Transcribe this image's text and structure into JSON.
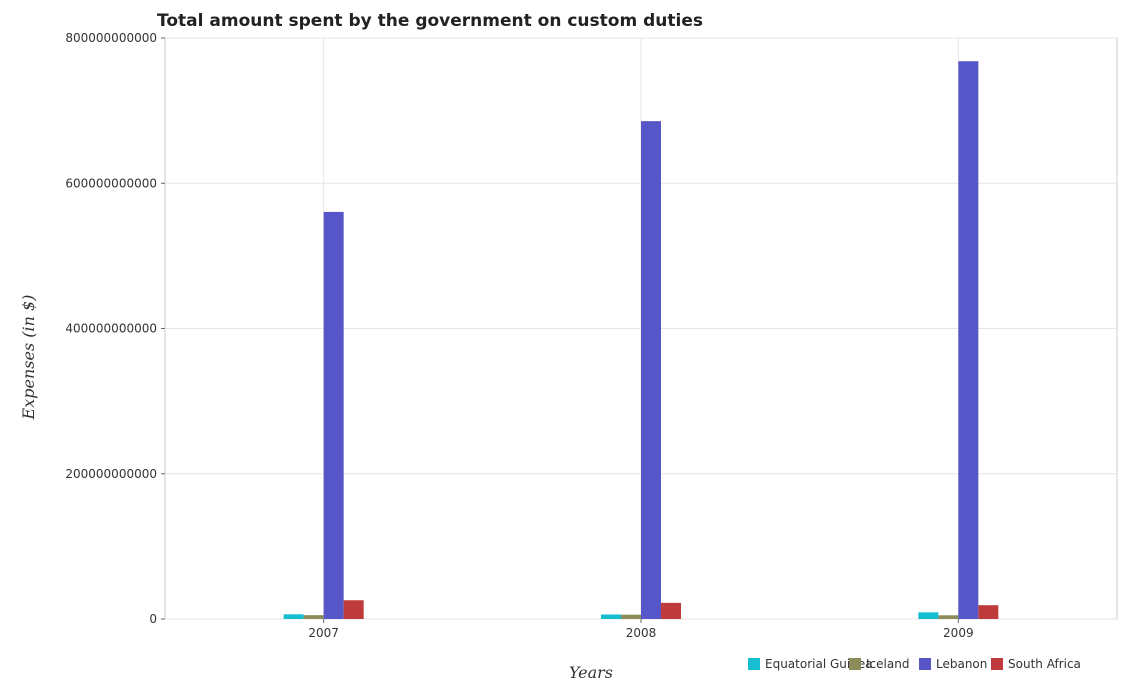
{
  "chart_data": {
    "type": "bar",
    "title": "Total amount spent by the government on custom duties",
    "xlabel": "Years",
    "ylabel": "Expenses (in $)",
    "categories": [
      "2007",
      "2008",
      "2009"
    ],
    "ylim": [
      0,
      800000000000
    ],
    "yticks": [
      0,
      200000000000,
      400000000000,
      600000000000,
      800000000000
    ],
    "ytick_labels": [
      "0",
      "200000000000",
      "400000000000",
      "600000000000",
      "800000000000"
    ],
    "grid": true,
    "legend_position": "bottom-right",
    "series": [
      {
        "name": "Equatorial Guinea",
        "color": "#17becf",
        "values": [
          6500000000,
          6200000000,
          9200000000
        ]
      },
      {
        "name": "Iceland",
        "color": "#8c8c5a",
        "values": [
          5300000000,
          5900000000,
          5100000000
        ]
      },
      {
        "name": "Lebanon",
        "color": "#5656c8",
        "values": [
          560500000000,
          685500000000,
          768000000000
        ]
      },
      {
        "name": "South Africa",
        "color": "#bf3b3b",
        "values": [
          25800000000,
          22200000000,
          19000000000
        ]
      }
    ]
  }
}
